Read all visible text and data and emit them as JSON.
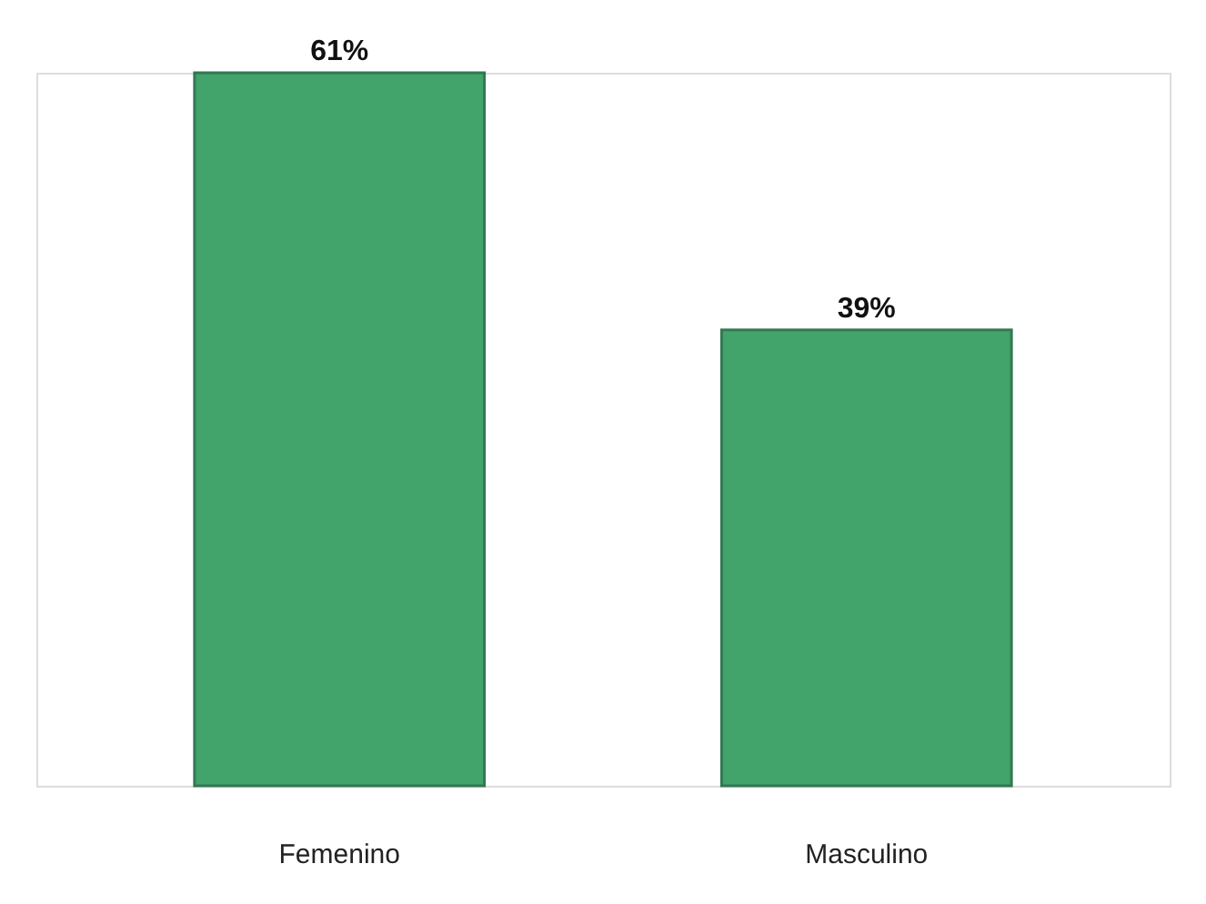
{
  "chart_data": {
    "type": "bar",
    "categories": [
      "Femenino",
      "Masculino"
    ],
    "values": [
      61,
      39
    ],
    "value_labels": [
      "61%",
      "39%"
    ],
    "color": "#2e9a5c",
    "grid": false
  }
}
